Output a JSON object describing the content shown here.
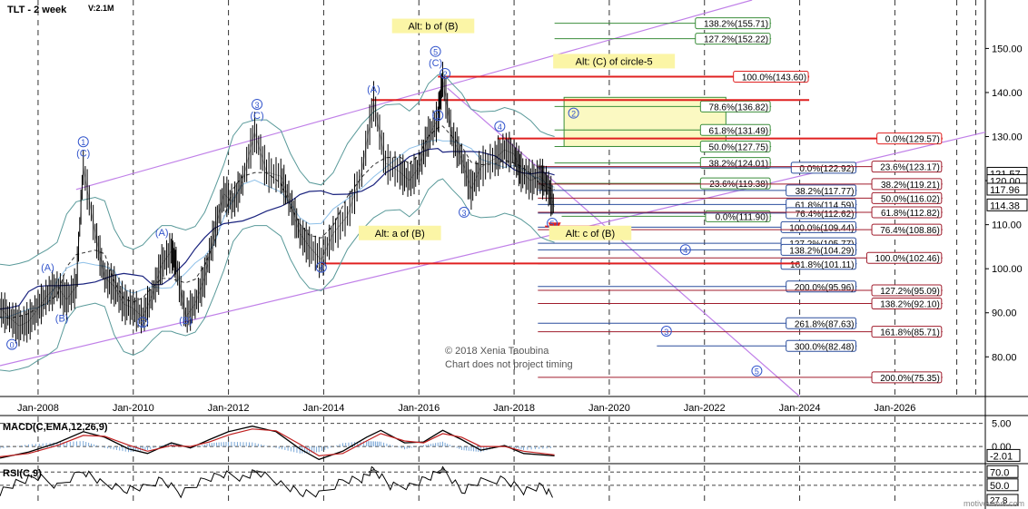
{
  "chart_data": {
    "type": "line",
    "title": "TLT - 2 week",
    "volume_label": "V:2.1M",
    "copyright": "© 2018 Xenia Taoubina",
    "disclaimer": "Chart does not project timing",
    "watermark": "motivewave.com",
    "x_ticks": [
      {
        "t": 2008,
        "label": "Jan-2008"
      },
      {
        "t": 2010,
        "label": "Jan-2010"
      },
      {
        "t": 2012,
        "label": "Jan-2012"
      },
      {
        "t": 2014,
        "label": "Jan-2014"
      },
      {
        "t": 2016,
        "label": "Jan-2016"
      },
      {
        "t": 2018,
        "label": "Jan-2018"
      },
      {
        "t": 2020,
        "label": "Jan-2020"
      },
      {
        "t": 2022,
        "label": "Jan-2022"
      },
      {
        "t": 2024,
        "label": "Jan-2024"
      },
      {
        "t": 2026,
        "label": "Jan-2026"
      }
    ],
    "xlim": [
      2007.2,
      2027.9
    ],
    "ylim": [
      71,
      161
    ],
    "y_ticks": [
      {
        "v": 150,
        "label": "150.00"
      },
      {
        "v": 140,
        "label": "140.00"
      },
      {
        "v": 130,
        "label": "130.00"
      },
      {
        "v": 120,
        "label": "120.00"
      },
      {
        "v": 110,
        "label": "110.00"
      },
      {
        "v": 100,
        "label": "100.00"
      },
      {
        "v": 90,
        "label": "90.00"
      },
      {
        "v": 80,
        "label": "80.00"
      }
    ],
    "price_series": [
      [
        2007.2,
        91
      ],
      [
        2007.4,
        89
      ],
      [
        2007.6,
        87
      ],
      [
        2007.8,
        88
      ],
      [
        2008.0,
        91
      ],
      [
        2008.2,
        94
      ],
      [
        2008.4,
        96
      ],
      [
        2008.6,
        93
      ],
      [
        2008.8,
        96
      ],
      [
        2008.95,
        123
      ],
      [
        2009.2,
        108
      ],
      [
        2009.4,
        98
      ],
      [
        2009.6,
        96
      ],
      [
        2009.8,
        92
      ],
      [
        2010.0,
        91
      ],
      [
        2010.2,
        89
      ],
      [
        2010.4,
        94
      ],
      [
        2010.6,
        101
      ],
      [
        2010.8,
        104
      ],
      [
        2010.9,
        101
      ],
      [
        2011.1,
        89
      ],
      [
        2011.3,
        92
      ],
      [
        2011.5,
        98
      ],
      [
        2011.7,
        108
      ],
      [
        2011.9,
        117
      ],
      [
        2012.1,
        115
      ],
      [
        2012.3,
        120
      ],
      [
        2012.55,
        131
      ],
      [
        2012.8,
        122
      ],
      [
        2013.1,
        121
      ],
      [
        2013.3,
        115
      ],
      [
        2013.5,
        108
      ],
      [
        2013.7,
        105
      ],
      [
        2013.95,
        102
      ],
      [
        2014.2,
        108
      ],
      [
        2014.5,
        112
      ],
      [
        2014.8,
        122
      ],
      [
        2015.05,
        138
      ],
      [
        2015.3,
        124
      ],
      [
        2015.6,
        122
      ],
      [
        2015.8,
        120
      ],
      [
        2016.0,
        123
      ],
      [
        2016.2,
        130
      ],
      [
        2016.4,
        134
      ],
      [
        2016.5,
        143
      ],
      [
        2016.7,
        130
      ],
      [
        2016.9,
        125
      ],
      [
        2017.1,
        118
      ],
      [
        2017.3,
        123
      ],
      [
        2017.6,
        125
      ],
      [
        2017.8,
        127
      ],
      [
        2018.0,
        126
      ],
      [
        2018.15,
        122
      ],
      [
        2018.35,
        120
      ],
      [
        2018.55,
        121
      ],
      [
        2018.7,
        119
      ],
      [
        2018.85,
        114
      ]
    ],
    "wave_labels": [
      {
        "text": "0",
        "t": 2007.45,
        "v": 82
      },
      {
        "text": "(A)",
        "t": 2008.2,
        "v": 99.5
      },
      {
        "text": "(B)",
        "t": 2008.5,
        "v": 88
      },
      {
        "text": "1",
        "t": 2008.95,
        "v": 128
      },
      {
        "text": "(C)",
        "t": 2008.95,
        "v": 125.5
      },
      {
        "text": "(A)",
        "t": 2010.6,
        "v": 107.5
      },
      {
        "text": "2",
        "t": 2010.2,
        "v": 87
      },
      {
        "text": "(B)",
        "t": 2011.1,
        "v": 87.5
      },
      {
        "text": "3",
        "t": 2012.6,
        "v": 136.5
      },
      {
        "text": "(C)",
        "t": 2012.6,
        "v": 134
      },
      {
        "text": "4",
        "t": 2013.95,
        "v": 99.5
      },
      {
        "text": "(A)",
        "t": 2015.05,
        "v": 140
      },
      {
        "text": "(B)",
        "t": 2015.6,
        "v": 108
      },
      {
        "text": "5",
        "t": 2016.35,
        "v": 148.5
      },
      {
        "text": "(C)",
        "t": 2016.35,
        "v": 146
      },
      {
        "text": "2",
        "t": 2016.55,
        "v": 143.5
      },
      {
        "text": "1",
        "t": 2016.4,
        "v": 134
      },
      {
        "text": "3",
        "t": 2016.95,
        "v": 112
      },
      {
        "text": "4",
        "t": 2017.7,
        "v": 131.5
      },
      {
        "text": "5",
        "t": 2018.8,
        "v": 109.5
      },
      {
        "text": "2",
        "t": 2019.25,
        "v": 134.5
      },
      {
        "text": "4",
        "t": 2021.6,
        "v": 103.5
      },
      {
        "text": "3",
        "t": 2021.2,
        "v": 85
      },
      {
        "text": "5",
        "t": 2023.1,
        "v": 76
      }
    ],
    "callouts": [
      {
        "text": "Alt: b of (B)",
        "t": 2016.3,
        "v": 154.5
      },
      {
        "text": "Alt: (C) of circle-5",
        "t": 2020.1,
        "v": 146.5
      },
      {
        "text": "Alt: a of (B)",
        "t": 2015.6,
        "v": 107.5
      },
      {
        "text": "Alt: c of (B)",
        "t": 2019.6,
        "v": 107.5
      }
    ],
    "fib_levels": [
      {
        "label": "138.2%(155.71)",
        "v": 155.71,
        "t1": 2018.85,
        "t2": 2023.4,
        "color": "#3b8e3b"
      },
      {
        "label": "127.2%(152.22)",
        "v": 152.22,
        "t1": 2018.85,
        "t2": 2023.4,
        "color": "#3b8e3b"
      },
      {
        "label": "100.0%(143.60)",
        "v": 143.6,
        "t1": 2016.4,
        "t2": 2024.2,
        "color": "#e02020"
      },
      {
        "label": "78.6%(136.82)",
        "v": 136.82,
        "t1": 2018.85,
        "t2": 2023.4,
        "color": "#3b8e3b"
      },
      {
        "label": "61.8%(131.49)",
        "v": 131.49,
        "t1": 2018.85,
        "t2": 2023.4,
        "color": "#3b8e3b"
      },
      {
        "label": "50.0%(127.75)",
        "v": 127.75,
        "t1": 2018.85,
        "t2": 2023.4,
        "color": "#3b8e3b"
      },
      {
        "label": "38.2%(124.01)",
        "v": 124.01,
        "t1": 2018.85,
        "t2": 2023.4,
        "color": "#3b8e3b"
      },
      {
        "label": "23.6%(119.38)",
        "v": 119.38,
        "t1": 2018.85,
        "t2": 2023.4,
        "color": "#3b8e3b"
      },
      {
        "label": "0.0%(111.90)",
        "v": 111.9,
        "t1": 2019.0,
        "t2": 2023.4,
        "color": "#3b8e3b"
      },
      {
        "label": "0.0%(122.92)",
        "v": 122.92,
        "t1": 2018.5,
        "t2": 2025.2,
        "color": "#2c4f9e"
      },
      {
        "label": "38.2%(117.77)",
        "v": 117.77,
        "t1": 2018.5,
        "t2": 2025.2,
        "color": "#2c4f9e"
      },
      {
        "label": "61.8%(114.59)",
        "v": 114.59,
        "t1": 2018.5,
        "t2": 2025.2,
        "color": "#2c4f9e"
      },
      {
        "label": "76.4%(112.62)",
        "v": 112.62,
        "t1": 2018.5,
        "t2": 2025.2,
        "color": "#2c4f9e"
      },
      {
        "label": "100.0%(109.44)",
        "v": 109.44,
        "t1": 2018.5,
        "t2": 2025.2,
        "color": "#2c4f9e"
      },
      {
        "label": "127.2%(105.77)",
        "v": 105.77,
        "t1": 2018.5,
        "t2": 2025.2,
        "color": "#2c4f9e"
      },
      {
        "label": "138.2%(104.29)",
        "v": 104.29,
        "t1": 2018.5,
        "t2": 2025.2,
        "color": "#2c4f9e"
      },
      {
        "label": "161.8%(101.11)",
        "v": 101.11,
        "t1": 2018.5,
        "t2": 2025.2,
        "color": "#2c4f9e"
      },
      {
        "label": "200.0%(95.96)",
        "v": 95.96,
        "t1": 2018.5,
        "t2": 2025.2,
        "color": "#2c4f9e"
      },
      {
        "label": "261.8%(87.63)",
        "v": 87.63,
        "t1": 2018.5,
        "t2": 2025.2,
        "color": "#2c4f9e"
      },
      {
        "label": "300.0%(82.48)",
        "v": 82.48,
        "t1": 2021.0,
        "t2": 2025.2,
        "color": "#2c4f9e"
      },
      {
        "label": "0.0%(129.57)",
        "v": 129.57,
        "t1": 2017.65,
        "t2": 2027.0,
        "color": "#e02020"
      },
      {
        "label": "23.6%(123.17)",
        "v": 123.17,
        "t1": 2018.5,
        "t2": 2027.0,
        "color": "#a01c2c"
      },
      {
        "label": "38.2%(119.21)",
        "v": 119.21,
        "t1": 2018.5,
        "t2": 2027.0,
        "color": "#a01c2c"
      },
      {
        "label": "50.0%(116.02)",
        "v": 116.02,
        "t1": 2018.5,
        "t2": 2027.0,
        "color": "#a01c2c"
      },
      {
        "label": "61.8%(112.82)",
        "v": 112.82,
        "t1": 2018.5,
        "t2": 2027.0,
        "color": "#a01c2c"
      },
      {
        "label": "76.4%(108.86)",
        "v": 108.86,
        "t1": 2018.5,
        "t2": 2027.0,
        "color": "#a01c2c"
      },
      {
        "label": "100.0%(102.46)",
        "v": 102.46,
        "t1": 2018.5,
        "t2": 2027.0,
        "color": "#a01c2c"
      },
      {
        "label": "127.2%(95.09)",
        "v": 95.09,
        "t1": 2018.5,
        "t2": 2027.0,
        "color": "#a01c2c"
      },
      {
        "label": "138.2%(92.10)",
        "v": 92.1,
        "t1": 2018.5,
        "t2": 2027.0,
        "color": "#a01c2c"
      },
      {
        "label": "161.8%(85.71)",
        "v": 85.71,
        "t1": 2018.5,
        "t2": 2027.0,
        "color": "#a01c2c"
      },
      {
        "label": "200.0%(75.35)",
        "v": 75.35,
        "t1": 2018.5,
        "t2": 2027.0,
        "color": "#a01c2c"
      }
    ],
    "red_lines": [
      {
        "v": 138.3,
        "t1": 2015.0,
        "t2": 2024.2
      },
      {
        "v": 101.2,
        "t1": 2013.95,
        "t2": 2024.0
      },
      {
        "v": 109.6,
        "t1": 2018.65,
        "t2": 2019.8
      }
    ],
    "channel_lines": [
      {
        "t1": 2008.8,
        "v1": 118,
        "t2": 2023.0,
        "v2": 161
      },
      {
        "t1": 2007.2,
        "v1": 78,
        "t2": 2027.9,
        "v2": 131
      }
    ],
    "trend_line": {
      "t1": 2016.6,
      "v1": 141,
      "t2": 2024.0,
      "v2": 71
    },
    "target_box": {
      "t1": 2019.05,
      "t2": 2022.45,
      "v1": 127.75,
      "v2": 138.9
    },
    "price_tags": [
      {
        "label": "121.57",
        "v": 121.57
      },
      {
        "label": "120.00",
        "v": 119.9
      },
      {
        "label": "117.96",
        "v": 117.96
      },
      {
        "label": "114.38",
        "v": 114.38
      }
    ],
    "macd": {
      "label": "MACD(C,EMA,12,26,9)",
      "ylim": [
        -3.5,
        6.5
      ],
      "ticks": [
        {
          "v": 5.0,
          "label": "5.00"
        },
        {
          "v": 0.0,
          "label": "0.00"
        }
      ],
      "value_label": "-2.01",
      "value": -2.01,
      "macd": [
        [
          2007.2,
          -2.5
        ],
        [
          2007.8,
          -1.2
        ],
        [
          2008.4,
          0.8
        ],
        [
          2008.95,
          3.2
        ],
        [
          2009.4,
          2.0
        ],
        [
          2009.9,
          -0.5
        ],
        [
          2010.3,
          -1.5
        ],
        [
          2010.8,
          0.8
        ],
        [
          2011.2,
          -0.3
        ],
        [
          2011.6,
          1.5
        ],
        [
          2012.0,
          3.2
        ],
        [
          2012.5,
          4.4
        ],
        [
          2013.0,
          3.2
        ],
        [
          2013.5,
          -0.5
        ],
        [
          2013.9,
          -2.8
        ],
        [
          2014.4,
          -1.0
        ],
        [
          2014.9,
          2.0
        ],
        [
          2015.2,
          3.5
        ],
        [
          2015.7,
          0.8
        ],
        [
          2016.1,
          1.0
        ],
        [
          2016.5,
          3.5
        ],
        [
          2016.9,
          1.5
        ],
        [
          2017.3,
          -0.8
        ],
        [
          2017.8,
          0.2
        ],
        [
          2018.2,
          -1.5
        ],
        [
          2018.85,
          -2.0
        ]
      ],
      "signal": [
        [
          2007.2,
          -2.2
        ],
        [
          2007.8,
          -1.5
        ],
        [
          2008.4,
          0.2
        ],
        [
          2008.95,
          2.4
        ],
        [
          2009.4,
          2.2
        ],
        [
          2009.9,
          0.3
        ],
        [
          2010.3,
          -1.0
        ],
        [
          2010.8,
          0.2
        ],
        [
          2011.2,
          0.0
        ],
        [
          2011.6,
          1.0
        ],
        [
          2012.0,
          2.5
        ],
        [
          2012.5,
          3.8
        ],
        [
          2013.0,
          3.4
        ],
        [
          2013.5,
          0.5
        ],
        [
          2013.9,
          -2.0
        ],
        [
          2014.4,
          -1.5
        ],
        [
          2014.9,
          1.2
        ],
        [
          2015.2,
          2.8
        ],
        [
          2015.7,
          1.2
        ],
        [
          2016.1,
          0.8
        ],
        [
          2016.5,
          2.8
        ],
        [
          2016.9,
          2.0
        ],
        [
          2017.3,
          0.0
        ],
        [
          2017.8,
          0.0
        ],
        [
          2018.2,
          -1.0
        ],
        [
          2018.85,
          -1.8
        ]
      ]
    },
    "rsi": {
      "label": "RSI(C,9)",
      "ylim": [
        25,
        80
      ],
      "ticks": [
        {
          "v": 70.0,
          "label": "70.0"
        },
        {
          "v": 50.0,
          "label": "50.0"
        }
      ],
      "value_label": "27.8",
      "value": 27.8,
      "series": [
        [
          2007.2,
          40
        ],
        [
          2007.6,
          55
        ],
        [
          2008.0,
          62
        ],
        [
          2008.4,
          50
        ],
        [
          2008.95,
          72
        ],
        [
          2009.3,
          55
        ],
        [
          2009.8,
          42
        ],
        [
          2010.2,
          45
        ],
        [
          2010.6,
          60
        ],
        [
          2011.0,
          38
        ],
        [
          2011.5,
          58
        ],
        [
          2011.9,
          66
        ],
        [
          2012.3,
          62
        ],
        [
          2012.6,
          72
        ],
        [
          2013.1,
          52
        ],
        [
          2013.5,
          38
        ],
        [
          2013.9,
          35
        ],
        [
          2014.4,
          58
        ],
        [
          2014.8,
          60
        ],
        [
          2015.05,
          74
        ],
        [
          2015.4,
          48
        ],
        [
          2015.8,
          50
        ],
        [
          2016.2,
          62
        ],
        [
          2016.5,
          75
        ],
        [
          2016.9,
          40
        ],
        [
          2017.3,
          55
        ],
        [
          2017.8,
          60
        ],
        [
          2018.2,
          42
        ],
        [
          2018.6,
          48
        ],
        [
          2018.85,
          28
        ]
      ]
    }
  }
}
